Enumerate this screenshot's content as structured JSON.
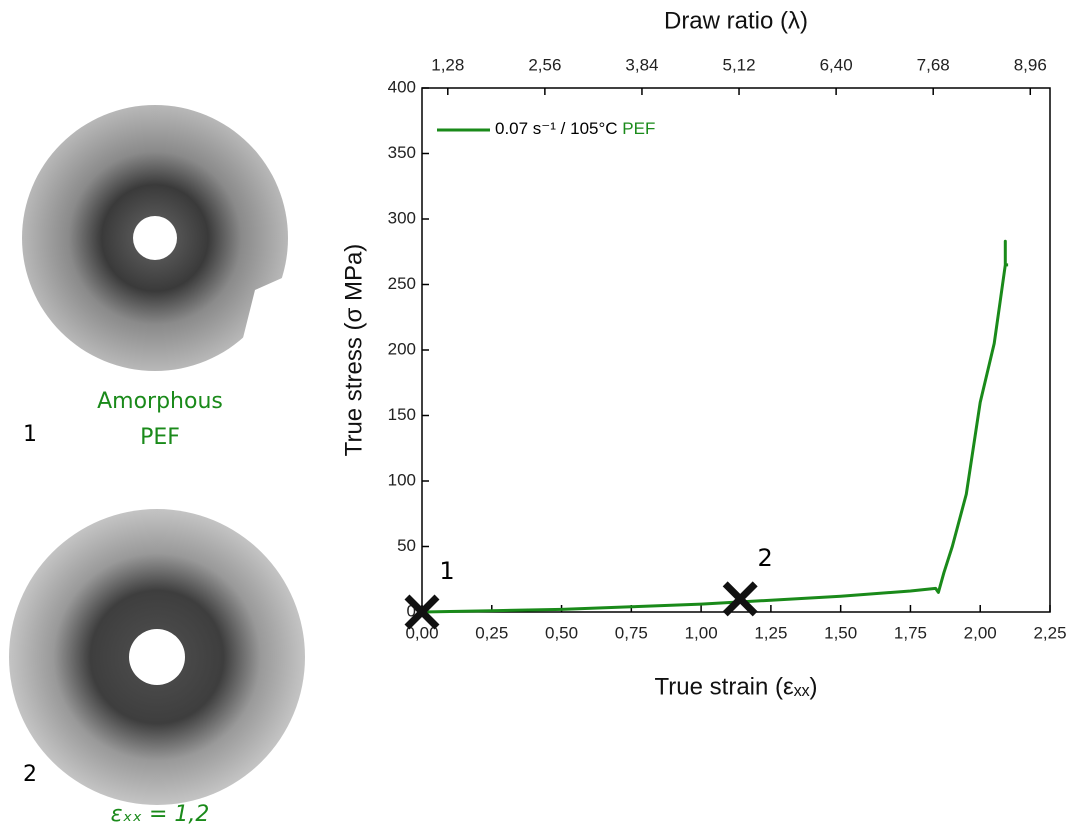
{
  "chart_data": {
    "type": "line",
    "xlabel": "True strain (εₓₓ)",
    "ylabel": "True stress (σ MPa)",
    "x2label": "Draw ratio (λ)",
    "xlim": [
      0,
      2.25
    ],
    "xticks": [
      {
        "value": 0,
        "label": "0,00"
      },
      {
        "value": 0.25,
        "label": "0,25"
      },
      {
        "value": 0.5,
        "label": "0,50"
      },
      {
        "value": 0.75,
        "label": "0,75"
      },
      {
        "value": 1,
        "label": "1,00"
      },
      {
        "value": 1.25,
        "label": "1,25"
      },
      {
        "value": 1.5,
        "label": "1,50"
      },
      {
        "value": 1.75,
        "label": "1,75"
      },
      {
        "value": 2,
        "label": "2,00"
      },
      {
        "value": 2.25,
        "label": "2,25"
      }
    ],
    "ylim": [
      0,
      400
    ],
    "yticks": [
      0,
      50,
      100,
      150,
      200,
      250,
      300,
      350,
      400
    ],
    "x2lim": [
      0.94,
      9.22
    ],
    "x2ticks": [
      {
        "value": 1.28,
        "label": "1,28"
      },
      {
        "value": 2.56,
        "label": "2,56"
      },
      {
        "value": 3.84,
        "label": "3,84"
      },
      {
        "value": 5.12,
        "label": "5,12"
      },
      {
        "value": 6.4,
        "label": "6,40"
      },
      {
        "value": 7.68,
        "label": "7,68"
      },
      {
        "value": 8.96,
        "label": "8,96"
      }
    ],
    "series": [
      {
        "name": "0.07 s⁻¹ / 105°C",
        "material": "PEF",
        "color": "#1a8a1a",
        "x": [
          0,
          0.25,
          0.5,
          0.75,
          1.0,
          1.25,
          1.5,
          1.75,
          1.84,
          1.85,
          1.87,
          1.9,
          1.95,
          2.0,
          2.05,
          2.07,
          2.09,
          2.09,
          2.09,
          2.1
        ],
        "values": [
          0,
          1,
          2,
          4,
          6,
          9,
          12,
          16,
          18,
          15,
          30,
          50,
          90,
          160,
          205,
          235,
          265,
          283,
          265,
          265
        ]
      }
    ],
    "markers": [
      {
        "label": "1",
        "x": 0,
        "y": 0
      },
      {
        "label": "2",
        "x": 1.14,
        "y": 10
      }
    ]
  },
  "panels": [
    {
      "number": "1",
      "caption": [
        "Amorphous",
        "PEF"
      ]
    },
    {
      "number": "2",
      "caption": [
        "εₓₓ = 1,2"
      ]
    }
  ]
}
